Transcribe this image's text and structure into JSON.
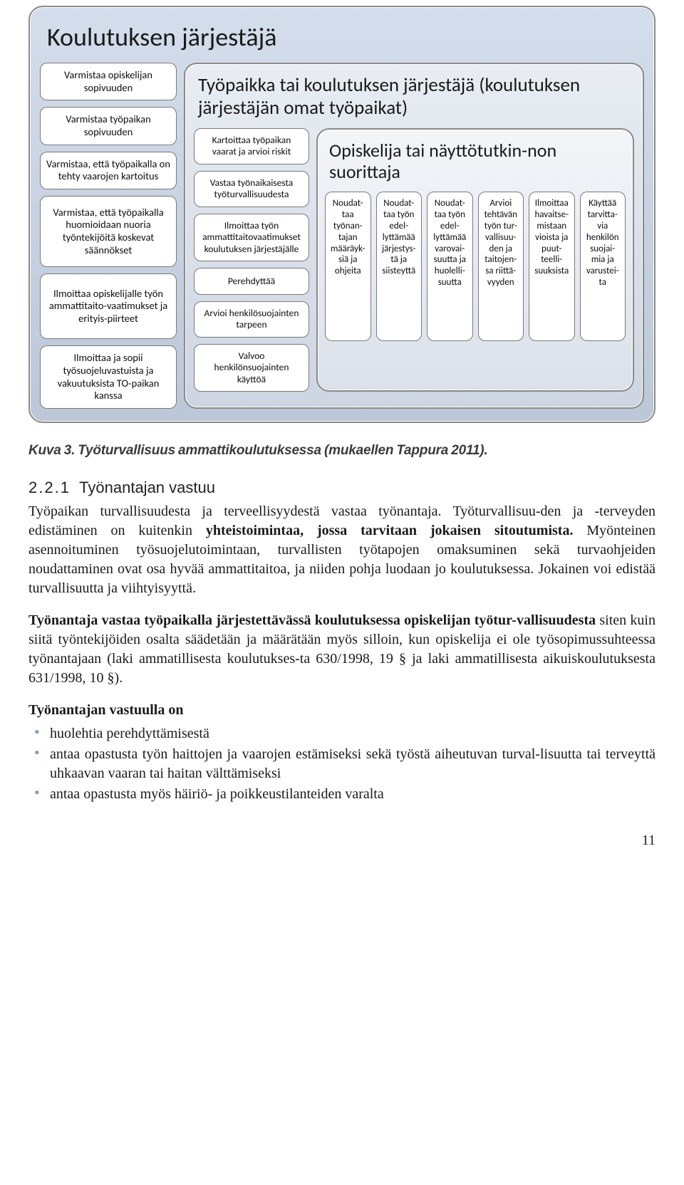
{
  "diagram": {
    "outer_title": "Koulutuksen järjestäjä",
    "mid_title": "Työpaikka tai koulutuksen järjestäjä (koulutuksen järjestäjän omat työpaikat)",
    "inner_title": "Opiskelija tai näyttötutkin-\nnon suorittaja",
    "outer_cells": [
      "Varmistaa opiskelijan sopivuuden",
      "Varmistaa työpaikan sopivuuden",
      "Varmistaa, että työpaikalla on tehty vaarojen kartoitus",
      "Varmistaa, että työpaikalla huomioidaan nuoria työntekijöitä koskevat säännökset",
      "Ilmoittaa opiskelijalle työn ammattitaito-\nvaatimukset ja erityis-\npiirteet",
      "Ilmoittaa ja sopii työsuojeluvastuista ja vakuutuksista TO-paikan kanssa"
    ],
    "mid_cells": [
      "Kartoittaa työpaikan vaarat ja arvioi riskit",
      "Vastaa työnaikaisesta työturvallisuudesta",
      "Ilmoittaa työn ammattitaitovaatimukset koulutuksen järjestäjälle",
      "Perehdyttää",
      "Arvioi henkilösuojainten tarpeen",
      "Valvoo henkilönsuojainten käyttöä"
    ],
    "inner_cells": [
      "Noudat-\ntaa työnan-\ntajan määräyk-\nsiä ja ohjeita",
      "Noudat-\ntaa työn edel-\nlyttämää järjestys-\ntä ja siisteyttä",
      "Noudat-\ntaa työn edel-\nlyttämää varovai-\nsuutta ja huolelli-\nsuutta",
      "Arvioi tehtävän työn tur-\nvallisuu-\nden ja taitojen-\nsa riittä-\nvyyden",
      "Ilmoittaa havaitse-\nmistaan vioista ja puut-\nteelli-\nsuuksista",
      "Käyttää tarvitta-\nvia henkilön suojai-\nmia ja varustei-\nta"
    ],
    "colors": {
      "panel_border": "#8a8a88",
      "outer_grad_top": "#d4ddeb",
      "outer_grad_bot": "#bcc7d8",
      "mid_grad_top": "#e9edf3",
      "mid_grad_bot": "#cdd5e2",
      "inner_grad_top": "#f3f5f8",
      "inner_grad_bot": "#dbe1ea",
      "cell_bg": "#ffffff"
    }
  },
  "caption": "Kuva 3. Työturvallisuus ammattikoulutuksessa (mukaellen Tappura 2011).",
  "section": {
    "num": "2.2.1",
    "title": "Työnantajan vastuu"
  },
  "para1_plain1": "Työpaikan turvallisuudesta ja terveellisyydestä vastaa työnantaja. Työturvallisuu-\nden ja -terveyden edistäminen on kuitenkin ",
  "para1_bold": "yhteistoimintaa, jossa tarvitaan jokaisen sitoutumista.",
  "para1_plain2": " Myönteinen asennoituminen työsuojelutoimintaan, turvallisten työtapojen omaksuminen sekä turvaohjeiden noudattaminen ovat osa hyvää ammattitaitoa, ja niiden pohja luodaan jo koulutuksessa. Jokainen voi edistää turvallisuutta ja viihtyisyyttä.",
  "para2_bold": "Työnantaja vastaa työpaikalla järjestettävässä koulutuksessa opiskelijan työtur-\nvallisuudesta",
  "para2_plain": " siten kuin siitä työntekijöiden osalta säädetään ja määrätään myös silloin, kun opiskelija ei ole työsopimussuhteessa työnantajaan (laki ammatillisesta koulutukses-\nta 630/1998, 19 § ja laki ammatillisesta aikuiskoulutuksesta 631/1998, 10 §).",
  "list_heading": "Työnantajan vastuulla on",
  "list_items": [
    "huolehtia perehdyttämisestä",
    "antaa opastusta työn haittojen ja vaarojen estämiseksi sekä työstä aiheutuvan turval-\nlisuutta tai terveyttä uhkaavan vaaran tai haitan välttämiseksi",
    "antaa opastusta myös häiriö- ja poikkeustilanteiden varalta"
  ],
  "page_number": "11"
}
